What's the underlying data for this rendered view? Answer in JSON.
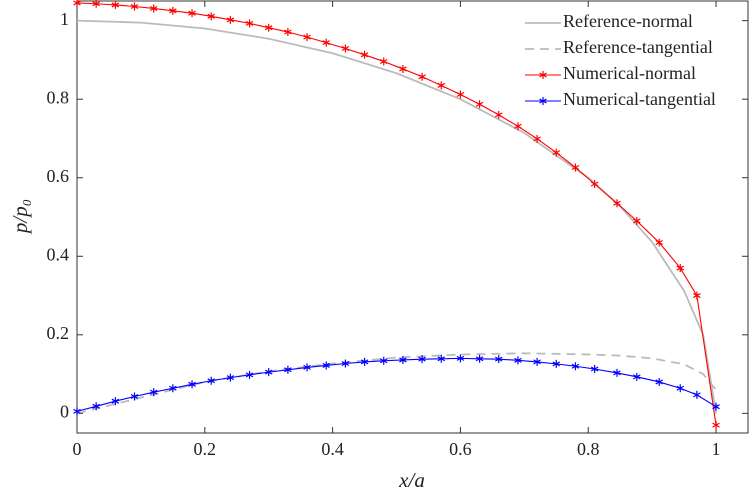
{
  "chart_data": {
    "type": "line",
    "xlabel": "x/a",
    "ylabel": "p/p₀",
    "xlim": [
      0,
      1.05
    ],
    "ylim": [
      -0.05,
      1.05
    ],
    "xticks": [
      0,
      0.2,
      0.4,
      0.6,
      0.8,
      1
    ],
    "yticks": [
      0,
      0.2,
      0.4,
      0.6,
      0.8,
      1
    ],
    "legend": "upper right",
    "series": [
      {
        "name": "Reference-normal",
        "color": "#bbbbbb",
        "dash": false,
        "marker": false,
        "x": [
          0,
          0.1,
          0.2,
          0.3,
          0.4,
          0.5,
          0.6,
          0.7,
          0.8,
          0.85,
          0.9,
          0.95,
          0.98,
          1.0
        ],
        "values": [
          1,
          0.995,
          0.98,
          0.954,
          0.917,
          0.866,
          0.8,
          0.714,
          0.6,
          0.527,
          0.436,
          0.312,
          0.199,
          0
        ]
      },
      {
        "name": "Reference-tangential",
        "color": "#bbbbbb",
        "dash": true,
        "marker": false,
        "x": [
          0,
          0.1,
          0.2,
          0.3,
          0.4,
          0.5,
          0.6,
          0.7,
          0.8,
          0.85,
          0.9,
          0.95,
          0.98,
          1.0
        ],
        "values": [
          0,
          0.04,
          0.08,
          0.107,
          0.127,
          0.142,
          0.15,
          0.153,
          0.15,
          0.147,
          0.14,
          0.125,
          0.1,
          0.06
        ]
      },
      {
        "name": "Numerical-normal",
        "color": "#ff0000",
        "dash": false,
        "marker": true,
        "x": [
          0,
          0.03,
          0.06,
          0.09,
          0.12,
          0.15,
          0.18,
          0.21,
          0.24,
          0.27,
          0.3,
          0.33,
          0.36,
          0.39,
          0.42,
          0.45,
          0.48,
          0.51,
          0.54,
          0.57,
          0.6,
          0.63,
          0.66,
          0.69,
          0.72,
          0.75,
          0.78,
          0.81,
          0.845,
          0.876,
          0.911,
          0.944,
          0.97,
          1.0
        ],
        "values": [
          1.045,
          1.043,
          1.04,
          1.036,
          1.031,
          1.025,
          1.019,
          1.011,
          1.002,
          0.993,
          0.982,
          0.971,
          0.958,
          0.944,
          0.929,
          0.913,
          0.896,
          0.877,
          0.857,
          0.835,
          0.812,
          0.787,
          0.76,
          0.731,
          0.699,
          0.664,
          0.626,
          0.584,
          0.535,
          0.49,
          0.435,
          0.37,
          0.3,
          -0.03
        ]
      },
      {
        "name": "Numerical-tangential",
        "color": "#0000ff",
        "dash": false,
        "marker": true,
        "x": [
          0,
          0.03,
          0.06,
          0.09,
          0.12,
          0.15,
          0.18,
          0.21,
          0.24,
          0.27,
          0.3,
          0.33,
          0.36,
          0.39,
          0.42,
          0.45,
          0.48,
          0.51,
          0.54,
          0.57,
          0.6,
          0.63,
          0.66,
          0.69,
          0.72,
          0.75,
          0.78,
          0.81,
          0.845,
          0.876,
          0.911,
          0.944,
          0.97,
          1.0
        ],
        "values": [
          0.005,
          0.018,
          0.031,
          0.043,
          0.054,
          0.064,
          0.074,
          0.083,
          0.091,
          0.098,
          0.105,
          0.111,
          0.117,
          0.122,
          0.127,
          0.131,
          0.134,
          0.136,
          0.138,
          0.139,
          0.14,
          0.139,
          0.138,
          0.135,
          0.131,
          0.126,
          0.12,
          0.113,
          0.103,
          0.093,
          0.08,
          0.064,
          0.047,
          0.017
        ]
      }
    ]
  }
}
